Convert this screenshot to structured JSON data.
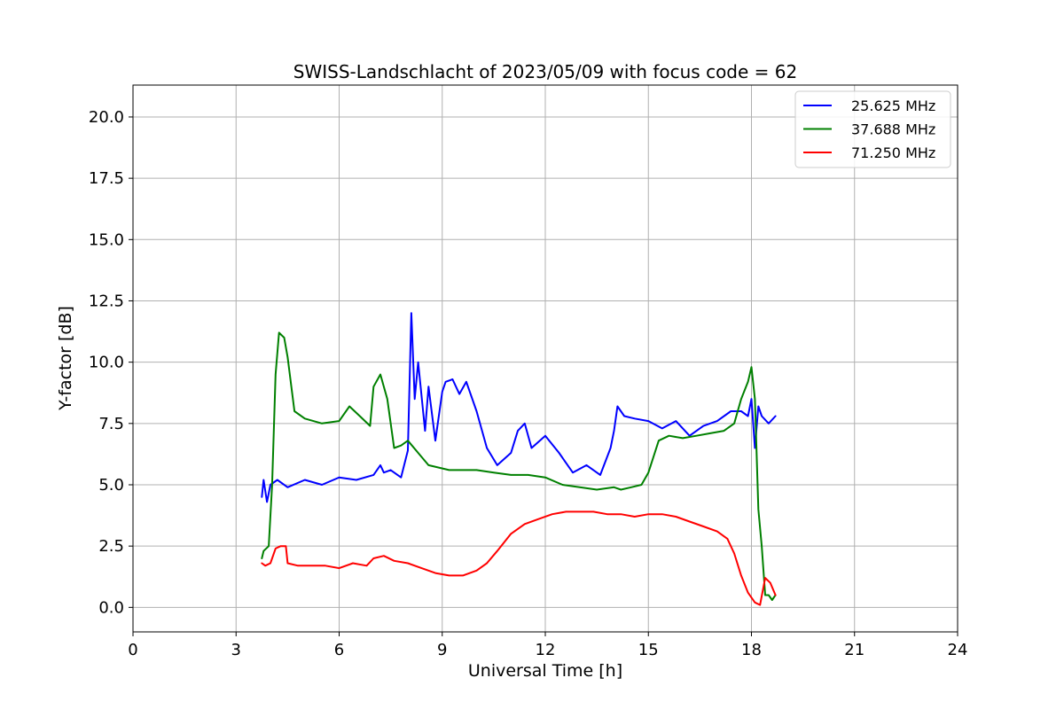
{
  "chart_data": {
    "type": "line",
    "title": "SWISS-Landschlacht of 2023/05/09 with focus code = 62",
    "xlabel": "Universal Time [h]",
    "ylabel": "Y-factor [dB]",
    "xlim": [
      0,
      24
    ],
    "ylim": [
      -1.0,
      21.3
    ],
    "xticks": [
      0,
      3,
      6,
      9,
      12,
      15,
      18,
      21,
      24
    ],
    "xtick_labels": [
      "0",
      "3",
      "6",
      "9",
      "12",
      "15",
      "18",
      "21",
      "24"
    ],
    "yticks": [
      0.0,
      2.5,
      5.0,
      7.5,
      10.0,
      12.5,
      15.0,
      17.5,
      20.0
    ],
    "ytick_labels": [
      "0.0",
      "2.5",
      "5.0",
      "7.5",
      "10.0",
      "12.5",
      "15.0",
      "17.5",
      "20.0"
    ],
    "grid": true,
    "legend_position": "top-right",
    "series": [
      {
        "name": "25.625 MHz",
        "color": "#0000ff",
        "x": [
          3.75,
          3.8,
          3.9,
          4.0,
          4.2,
          4.5,
          5.0,
          5.5,
          6.0,
          6.5,
          7.0,
          7.2,
          7.3,
          7.5,
          7.8,
          8.0,
          8.1,
          8.2,
          8.3,
          8.5,
          8.6,
          8.8,
          9.0,
          9.1,
          9.3,
          9.5,
          9.7,
          10.0,
          10.3,
          10.6,
          11.0,
          11.2,
          11.4,
          11.6,
          12.0,
          12.4,
          12.8,
          13.2,
          13.6,
          13.9,
          14.0,
          14.1,
          14.3,
          14.6,
          15.0,
          15.4,
          15.8,
          16.2,
          16.6,
          17.0,
          17.4,
          17.7,
          17.9,
          18.0,
          18.1,
          18.2,
          18.3,
          18.5,
          18.7
        ],
        "y": [
          4.5,
          5.2,
          4.3,
          5.0,
          5.2,
          4.9,
          5.2,
          5.0,
          5.3,
          5.2,
          5.4,
          5.8,
          5.5,
          5.6,
          5.3,
          6.4,
          12.0,
          8.5,
          10.0,
          7.2,
          9.0,
          6.8,
          8.8,
          9.2,
          9.3,
          8.7,
          9.2,
          8.0,
          6.5,
          5.8,
          6.3,
          7.2,
          7.5,
          6.5,
          7.0,
          6.3,
          5.5,
          5.8,
          5.4,
          6.5,
          7.2,
          8.2,
          7.8,
          7.7,
          7.6,
          7.3,
          7.6,
          7.0,
          7.4,
          7.6,
          8.0,
          8.0,
          7.8,
          8.5,
          6.5,
          8.2,
          7.8,
          7.5,
          7.8
        ]
      },
      {
        "name": "37.688 MHz",
        "color": "#008000",
        "x": [
          3.75,
          3.8,
          3.95,
          4.05,
          4.15,
          4.25,
          4.4,
          4.5,
          4.7,
          5.0,
          5.5,
          6.0,
          6.3,
          6.6,
          6.9,
          7.0,
          7.2,
          7.4,
          7.6,
          7.8,
          8.0,
          8.3,
          8.6,
          8.9,
          9.2,
          9.5,
          10.0,
          10.5,
          11.0,
          11.5,
          12.0,
          12.5,
          13.0,
          13.5,
          14.0,
          14.2,
          14.5,
          14.8,
          15.0,
          15.3,
          15.6,
          16.0,
          16.4,
          16.8,
          17.2,
          17.5,
          17.7,
          17.9,
          18.0,
          18.1,
          18.2,
          18.3,
          18.4,
          18.5,
          18.6,
          18.7
        ],
        "y": [
          2.0,
          2.3,
          2.5,
          5.0,
          9.5,
          11.2,
          11.0,
          10.2,
          8.0,
          7.7,
          7.5,
          7.6,
          8.2,
          7.8,
          7.4,
          9.0,
          9.5,
          8.5,
          6.5,
          6.6,
          6.8,
          6.3,
          5.8,
          5.7,
          5.6,
          5.6,
          5.6,
          5.5,
          5.4,
          5.4,
          5.3,
          5.0,
          4.9,
          4.8,
          4.9,
          4.8,
          4.9,
          5.0,
          5.5,
          6.8,
          7.0,
          6.9,
          7.0,
          7.1,
          7.2,
          7.5,
          8.5,
          9.2,
          9.8,
          8.5,
          4.0,
          2.5,
          0.5,
          0.5,
          0.3,
          0.5
        ]
      },
      {
        "name": "71.250 MHz",
        "color": "#ff0000",
        "x": [
          3.75,
          3.85,
          4.0,
          4.15,
          4.3,
          4.45,
          4.5,
          4.8,
          5.2,
          5.6,
          6.0,
          6.4,
          6.8,
          7.0,
          7.3,
          7.6,
          8.0,
          8.4,
          8.8,
          9.2,
          9.6,
          10.0,
          10.3,
          10.6,
          11.0,
          11.4,
          11.8,
          12.2,
          12.6,
          13.0,
          13.4,
          13.8,
          14.2,
          14.6,
          15.0,
          15.4,
          15.8,
          16.2,
          16.6,
          17.0,
          17.3,
          17.5,
          17.7,
          17.9,
          18.1,
          18.25,
          18.4,
          18.55,
          18.7
        ],
        "y": [
          1.8,
          1.7,
          1.8,
          2.4,
          2.5,
          2.5,
          1.8,
          1.7,
          1.7,
          1.7,
          1.6,
          1.8,
          1.7,
          2.0,
          2.1,
          1.9,
          1.8,
          1.6,
          1.4,
          1.3,
          1.3,
          1.5,
          1.8,
          2.3,
          3.0,
          3.4,
          3.6,
          3.8,
          3.9,
          3.9,
          3.9,
          3.8,
          3.8,
          3.7,
          3.8,
          3.8,
          3.7,
          3.5,
          3.3,
          3.1,
          2.8,
          2.2,
          1.3,
          0.6,
          0.2,
          0.1,
          1.2,
          1.0,
          0.5
        ]
      }
    ]
  }
}
